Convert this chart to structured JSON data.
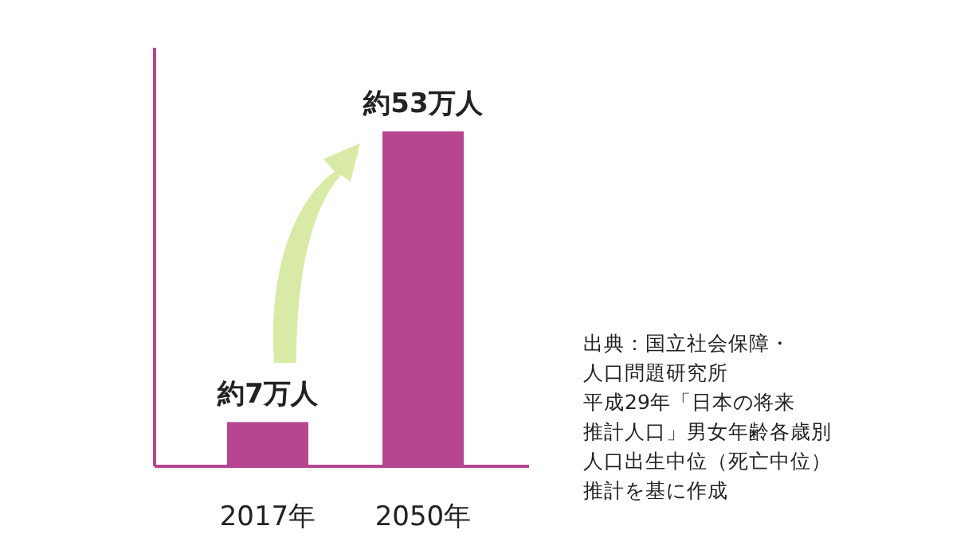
{
  "chart_data": {
    "type": "bar",
    "categories": [
      "2017年",
      "2050年"
    ],
    "values": [
      7,
      53
    ],
    "color": "#b5468f",
    "value_labels": [
      "約7万人",
      "約53万人"
    ],
    "annotations": [
      "出典：国立社会保障・",
      "人口問題研究所",
      "平成29年「日本の将来",
      "推計人口」男女年齢各歳別",
      "人口出生中位（死亡中位）",
      "推計を基に作成"
    ]
  }
}
